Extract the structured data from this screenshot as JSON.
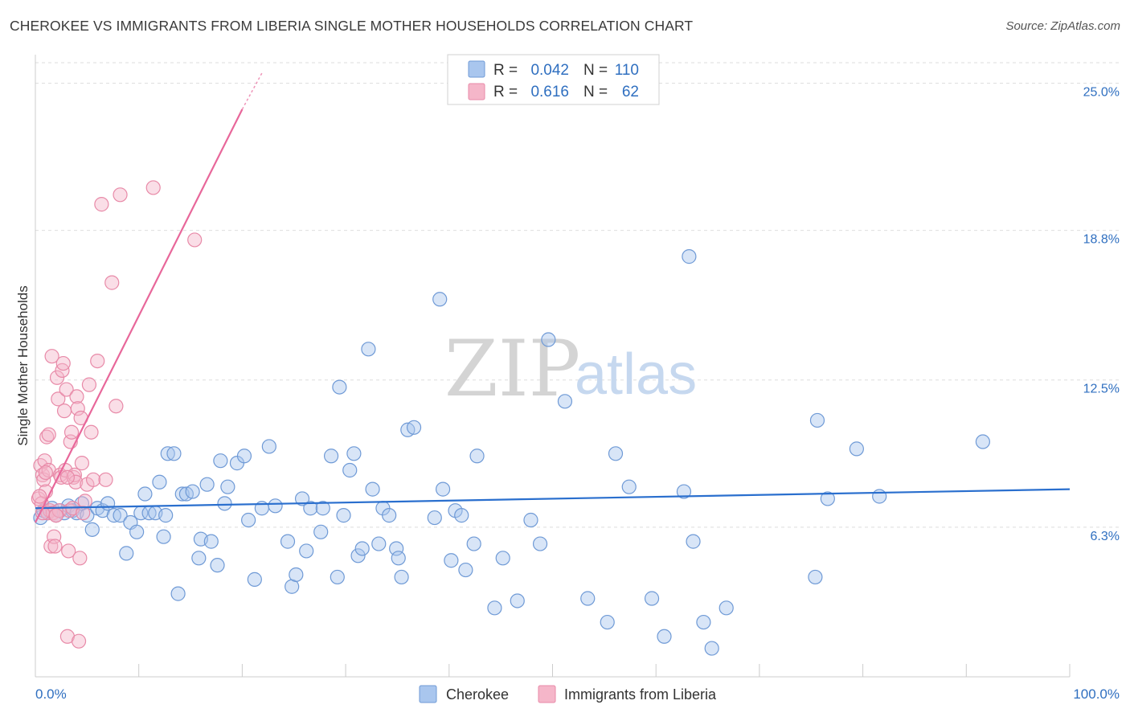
{
  "header": {
    "title": "CHEROKEE VS IMMIGRANTS FROM LIBERIA SINGLE MOTHER HOUSEHOLDS CORRELATION CHART",
    "source": "Source: ZipAtlas.com"
  },
  "legend": {
    "r_label": "R =",
    "n_label": "N =",
    "series1": {
      "r": "0.042",
      "n": "110"
    },
    "series2": {
      "r": "0.616",
      "n": "62"
    }
  },
  "watermark": {
    "zip": "ZIP",
    "atlas": "atlas"
  },
  "colors": {
    "cherokee_fill": "#a9c6ee",
    "cherokee_stroke": "#6f9ad6",
    "cherokee_line": "#2a6fce",
    "liberia_fill": "#f5b6c9",
    "liberia_stroke": "#e88aa8",
    "liberia_line": "#e8679a",
    "grid": "#dedede",
    "axis_label": "#2f6fc0"
  },
  "chart_data": {
    "type": "scatter",
    "title": "CHEROKEE VS IMMIGRANTS FROM LIBERIA SINGLE MOTHER HOUSEHOLDS CORRELATION CHART",
    "xlabel": "",
    "ylabel": "Single Mother Households",
    "xlim": [
      0,
      100
    ],
    "ylim": [
      0,
      26.2
    ],
    "x_tick_labels": [
      "0.0%",
      "100.0%"
    ],
    "y_ticks": [
      6.3,
      12.5,
      18.8,
      25.0
    ],
    "y_tick_labels": [
      "6.3%",
      "12.5%",
      "18.8%",
      "25.0%"
    ],
    "grid": "horizontal dashed",
    "legend_position": "top-center",
    "series": [
      {
        "name": "Cherokee",
        "r": 0.042,
        "n": 110,
        "trend": [
          [
            0,
            7.1
          ],
          [
            100,
            7.9
          ]
        ],
        "points": [
          [
            0.5,
            6.7
          ],
          [
            0.8,
            7.0
          ],
          [
            1.2,
            6.9
          ],
          [
            1.6,
            7.1
          ],
          [
            2.0,
            6.8
          ],
          [
            2.4,
            7.0
          ],
          [
            2.8,
            6.9
          ],
          [
            3.2,
            7.2
          ],
          [
            3.6,
            7.0
          ],
          [
            4.0,
            6.9
          ],
          [
            4.5,
            7.3
          ],
          [
            5.0,
            6.8
          ],
          [
            5.5,
            6.2
          ],
          [
            6.0,
            7.1
          ],
          [
            6.5,
            7.0
          ],
          [
            7.0,
            7.3
          ],
          [
            7.6,
            6.8
          ],
          [
            8.2,
            6.8
          ],
          [
            8.8,
            5.2
          ],
          [
            9.2,
            6.5
          ],
          [
            9.8,
            6.1
          ],
          [
            10.2,
            6.9
          ],
          [
            10.6,
            7.7
          ],
          [
            11.0,
            6.9
          ],
          [
            11.6,
            6.9
          ],
          [
            12.0,
            8.2
          ],
          [
            12.4,
            5.9
          ],
          [
            12.6,
            6.8
          ],
          [
            12.8,
            9.4
          ],
          [
            13.4,
            9.4
          ],
          [
            13.8,
            3.5
          ],
          [
            14.2,
            7.7
          ],
          [
            14.6,
            7.7
          ],
          [
            15.2,
            7.8
          ],
          [
            15.8,
            5.0
          ],
          [
            16.0,
            5.8
          ],
          [
            16.6,
            8.1
          ],
          [
            17.0,
            5.7
          ],
          [
            17.6,
            4.7
          ],
          [
            17.9,
            9.1
          ],
          [
            18.3,
            7.3
          ],
          [
            18.6,
            8.0
          ],
          [
            19.5,
            9.0
          ],
          [
            20.2,
            9.3
          ],
          [
            20.6,
            6.6
          ],
          [
            21.2,
            4.1
          ],
          [
            21.9,
            7.1
          ],
          [
            22.6,
            9.7
          ],
          [
            23.2,
            7.2
          ],
          [
            24.4,
            5.7
          ],
          [
            24.8,
            3.8
          ],
          [
            25.2,
            4.3
          ],
          [
            25.8,
            7.5
          ],
          [
            26.2,
            5.3
          ],
          [
            26.6,
            7.1
          ],
          [
            27.6,
            6.1
          ],
          [
            27.8,
            7.1
          ],
          [
            28.6,
            9.3
          ],
          [
            29.2,
            4.2
          ],
          [
            29.4,
            12.2
          ],
          [
            29.8,
            6.8
          ],
          [
            30.4,
            8.7
          ],
          [
            30.8,
            9.4
          ],
          [
            31.2,
            5.1
          ],
          [
            31.6,
            5.4
          ],
          [
            32.2,
            13.8
          ],
          [
            32.6,
            7.9
          ],
          [
            33.2,
            5.6
          ],
          [
            33.6,
            7.1
          ],
          [
            34.2,
            6.8
          ],
          [
            34.9,
            5.4
          ],
          [
            35.1,
            5.0
          ],
          [
            35.4,
            4.2
          ],
          [
            36.0,
            10.4
          ],
          [
            36.6,
            10.5
          ],
          [
            38.6,
            6.7
          ],
          [
            39.1,
            15.9
          ],
          [
            39.4,
            7.9
          ],
          [
            40.2,
            4.9
          ],
          [
            40.6,
            7.0
          ],
          [
            41.2,
            6.8
          ],
          [
            41.6,
            4.5
          ],
          [
            42.4,
            5.6
          ],
          [
            42.7,
            9.3
          ],
          [
            44.4,
            2.9
          ],
          [
            45.2,
            5.0
          ],
          [
            46.6,
            3.2
          ],
          [
            47.9,
            6.6
          ],
          [
            48.8,
            5.6
          ],
          [
            49.6,
            14.2
          ],
          [
            50.4,
            25.0
          ],
          [
            51.2,
            11.6
          ],
          [
            53.4,
            3.3
          ],
          [
            55.3,
            2.3
          ],
          [
            56.1,
            9.4
          ],
          [
            57.4,
            8.0
          ],
          [
            59.6,
            3.3
          ],
          [
            60.8,
            1.7
          ],
          [
            62.7,
            7.8
          ],
          [
            63.2,
            17.7
          ],
          [
            63.6,
            5.7
          ],
          [
            64.6,
            2.3
          ],
          [
            65.4,
            1.2
          ],
          [
            66.8,
            2.9
          ],
          [
            75.4,
            4.2
          ],
          [
            75.6,
            10.8
          ],
          [
            76.6,
            7.5
          ],
          [
            79.4,
            9.6
          ],
          [
            81.6,
            7.6
          ],
          [
            91.6,
            9.9
          ]
        ]
      },
      {
        "name": "Immigrants from Liberia",
        "r": 0.616,
        "n": 62,
        "trend": [
          [
            0,
            6.5
          ],
          [
            20.0,
            23.9
          ]
        ],
        "trend_dashed": [
          [
            20.0,
            23.9
          ],
          [
            22.0,
            25.5
          ]
        ],
        "points": [
          [
            0.3,
            7.5
          ],
          [
            0.5,
            8.9
          ],
          [
            0.6,
            7.3
          ],
          [
            0.7,
            8.5
          ],
          [
            0.8,
            8.3
          ],
          [
            0.9,
            9.1
          ],
          [
            1.0,
            7.8
          ],
          [
            1.1,
            10.1
          ],
          [
            1.2,
            6.9
          ],
          [
            1.3,
            8.7
          ],
          [
            1.4,
            7.0
          ],
          [
            1.5,
            5.5
          ],
          [
            1.6,
            13.5
          ],
          [
            1.7,
            6.9
          ],
          [
            1.8,
            5.9
          ],
          [
            1.9,
            5.5
          ],
          [
            2.0,
            6.8
          ],
          [
            2.1,
            12.6
          ],
          [
            2.2,
            11.7
          ],
          [
            2.3,
            7.0
          ],
          [
            2.4,
            8.5
          ],
          [
            2.5,
            8.4
          ],
          [
            2.6,
            12.9
          ],
          [
            2.7,
            13.2
          ],
          [
            2.8,
            11.2
          ],
          [
            2.9,
            8.7
          ],
          [
            3.0,
            12.1
          ],
          [
            3.1,
            1.7
          ],
          [
            3.2,
            5.3
          ],
          [
            3.3,
            7.0
          ],
          [
            3.4,
            9.9
          ],
          [
            3.5,
            10.3
          ],
          [
            3.6,
            7.1
          ],
          [
            3.7,
            8.4
          ],
          [
            3.8,
            8.5
          ],
          [
            3.9,
            8.2
          ],
          [
            4.0,
            11.8
          ],
          [
            4.1,
            11.3
          ],
          [
            4.2,
            1.5
          ],
          [
            4.3,
            5.0
          ],
          [
            4.4,
            10.9
          ],
          [
            4.5,
            9.0
          ],
          [
            4.6,
            6.9
          ],
          [
            4.8,
            7.4
          ],
          [
            5.0,
            8.1
          ],
          [
            5.2,
            12.3
          ],
          [
            5.4,
            10.3
          ],
          [
            5.6,
            8.3
          ],
          [
            6.0,
            13.3
          ],
          [
            6.4,
            19.9
          ],
          [
            6.8,
            8.3
          ],
          [
            7.4,
            16.6
          ],
          [
            7.8,
            11.4
          ],
          [
            8.2,
            20.3
          ],
          [
            11.4,
            20.6
          ],
          [
            15.4,
            18.4
          ],
          [
            0.4,
            7.6
          ],
          [
            0.7,
            6.9
          ],
          [
            1.0,
            8.6
          ],
          [
            1.3,
            10.2
          ],
          [
            2.0,
            6.8
          ],
          [
            3.1,
            8.4
          ]
        ]
      }
    ]
  },
  "bottom_legend": {
    "item1": "Cherokee",
    "item2": "Immigrants from Liberia"
  }
}
